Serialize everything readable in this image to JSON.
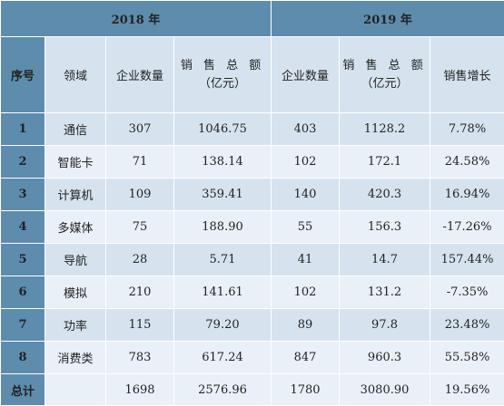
{
  "header": {
    "year_2018": "2018 年",
    "year_2019": "2019 年",
    "seq": "序号",
    "domain": "领域",
    "count_2018": "企业数量",
    "sales_2018_line1": "销 售 总 额",
    "sales_2018_line2": "（亿元）",
    "count_2019": "企业数量",
    "sales_2019_line1": "销 售 总 额",
    "sales_2019_line2": "（亿元）",
    "growth": "销售增长"
  },
  "rows": [
    {
      "idx": "1",
      "domain": "通信",
      "count2018": "307",
      "sales2018": "1046.75",
      "count2019": "403",
      "sales2019": "1128.2",
      "growth": "7.78%"
    },
    {
      "idx": "2",
      "domain": "智能卡",
      "count2018": "71",
      "sales2018": "138.14",
      "count2019": "102",
      "sales2019": "172.1",
      "growth": "24.58%"
    },
    {
      "idx": "3",
      "domain": "计算机",
      "count2018": "109",
      "sales2018": "359.41",
      "count2019": "140",
      "sales2019": "420.3",
      "growth": "16.94%"
    },
    {
      "idx": "4",
      "domain": "多媒体",
      "count2018": "75",
      "sales2018": "188.90",
      "count2019": "55",
      "sales2019": "156.3",
      "growth": "-17.26%"
    },
    {
      "idx": "5",
      "domain": "导航",
      "count2018": "28",
      "sales2018": "5.71",
      "count2019": "41",
      "sales2019": "14.7",
      "growth": "157.44%"
    },
    {
      "idx": "6",
      "domain": "模拟",
      "count2018": "210",
      "sales2018": "141.61",
      "count2019": "102",
      "sales2019": "131.2",
      "growth": "-7.35%"
    },
    {
      "idx": "7",
      "domain": "功率",
      "count2018": "115",
      "sales2018": "79.20",
      "count2019": "89",
      "sales2019": "97.8",
      "growth": "23.48%"
    },
    {
      "idx": "8",
      "domain": "消费类",
      "count2018": "783",
      "sales2018": "617.24",
      "count2019": "847",
      "sales2019": "960.3",
      "growth": "55.58%"
    }
  ],
  "total": {
    "label": "总计",
    "domain": "",
    "count2018": "1698",
    "sales2018": "2576.96",
    "count2019": "1780",
    "sales2019": "3080.90",
    "growth": "19.56%"
  },
  "colors": {
    "header_blue": "#5e8cad",
    "row_light": "#d6e3ef",
    "row_lighter": "#e9f0f7"
  }
}
